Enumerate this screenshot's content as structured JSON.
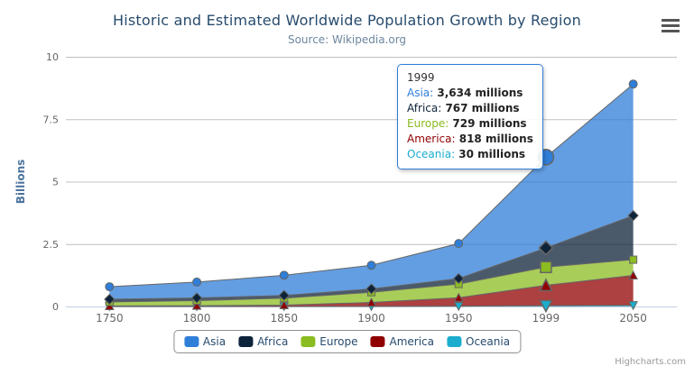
{
  "chart": {
    "title": "Historic and Estimated Worldwide Population Growth by Region",
    "subtitle": "Source: Wikipedia.org",
    "credits": "Highcharts.com"
  },
  "chart_data": {
    "type": "area",
    "stacking": "normal",
    "title": "Historic and Estimated Worldwide Population Growth by Region",
    "subtitle": "Source: Wikipedia.org",
    "categories": [
      "1750",
      "1800",
      "1850",
      "1900",
      "1950",
      "1999",
      "2050"
    ],
    "series": [
      {
        "name": "Asia",
        "color": "#2f7ed8",
        "marker": "circle",
        "values": [
          502,
          635,
          809,
          947,
          1402,
          3634,
          5268
        ]
      },
      {
        "name": "Africa",
        "color": "#0d233a",
        "marker": "diamond",
        "values": [
          106,
          107,
          111,
          133,
          221,
          767,
          1766
        ]
      },
      {
        "name": "Europe",
        "color": "#8bbc21",
        "marker": "square",
        "values": [
          163,
          203,
          276,
          408,
          547,
          729,
          628
        ]
      },
      {
        "name": "America",
        "color": "#910000",
        "marker": "triangle",
        "values": [
          18,
          31,
          54,
          156,
          339,
          818,
          1201
        ]
      },
      {
        "name": "Oceania",
        "color": "#1aadce",
        "marker": "triangle-down",
        "values": [
          2,
          2,
          2,
          6,
          13,
          30,
          46
        ]
      }
    ],
    "values_unit": "millions",
    "ylabel": "Billions",
    "ytick_labels": [
      "0",
      "2.5",
      "5",
      "7.5",
      "10"
    ],
    "ytick_values": [
      0,
      2.5,
      5,
      7.5,
      10
    ],
    "ylim": [
      0,
      10
    ],
    "grid": true,
    "legend_position": "bottom-center",
    "line_color": "#666666",
    "grid_color": "#C0C0C0",
    "axis_line_color": "#C0D0E0",
    "fill_opacity": 0.75,
    "axis_label_color": "#666666",
    "yaxis_title_color": "#4d759e"
  },
  "hover": {
    "category": "1999",
    "category_index": 5
  },
  "tooltip": {
    "header": "1999",
    "border_color": "#2f7ed8",
    "rows": [
      {
        "label": "Asia",
        "value": "3,634 millions",
        "color": "#2f7ed8"
      },
      {
        "label": "Africa",
        "value": "767 millions",
        "color": "#0d233a"
      },
      {
        "label": "Europe",
        "value": "729 millions",
        "color": "#8bbc21"
      },
      {
        "label": "America",
        "value": "818 millions",
        "color": "#910000"
      },
      {
        "label": "Oceania",
        "value": "30 millions",
        "color": "#1aadce"
      }
    ]
  },
  "legend": {
    "items": [
      {
        "label": "Asia",
        "color": "#2f7ed8"
      },
      {
        "label": "Africa",
        "color": "#0d233a"
      },
      {
        "label": "Europe",
        "color": "#8bbc21"
      },
      {
        "label": "America",
        "color": "#910000"
      },
      {
        "label": "Oceania",
        "color": "#1aadce"
      }
    ]
  }
}
